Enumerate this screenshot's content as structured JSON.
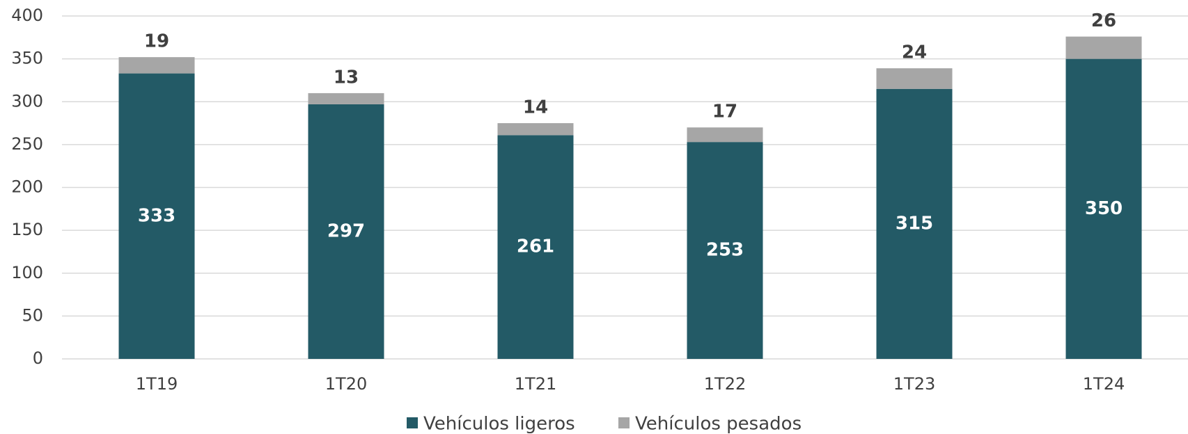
{
  "chart_data": {
    "type": "stacked_bar",
    "categories": [
      "1T19",
      "1T20",
      "1T21",
      "1T22",
      "1T23",
      "1T24"
    ],
    "series": [
      {
        "name": "Vehículos ligeros",
        "color": "#235a66",
        "values": [
          333,
          297,
          261,
          253,
          315,
          350
        ]
      },
      {
        "name": "Vehículos pesados",
        "color": "#a6a6a6",
        "values": [
          19,
          13,
          14,
          17,
          24,
          26
        ]
      }
    ],
    "ylim": [
      0,
      400
    ],
    "yticks": [
      0,
      50,
      100,
      150,
      200,
      250,
      300,
      350,
      400
    ],
    "grid": true,
    "legend": "bottom"
  }
}
